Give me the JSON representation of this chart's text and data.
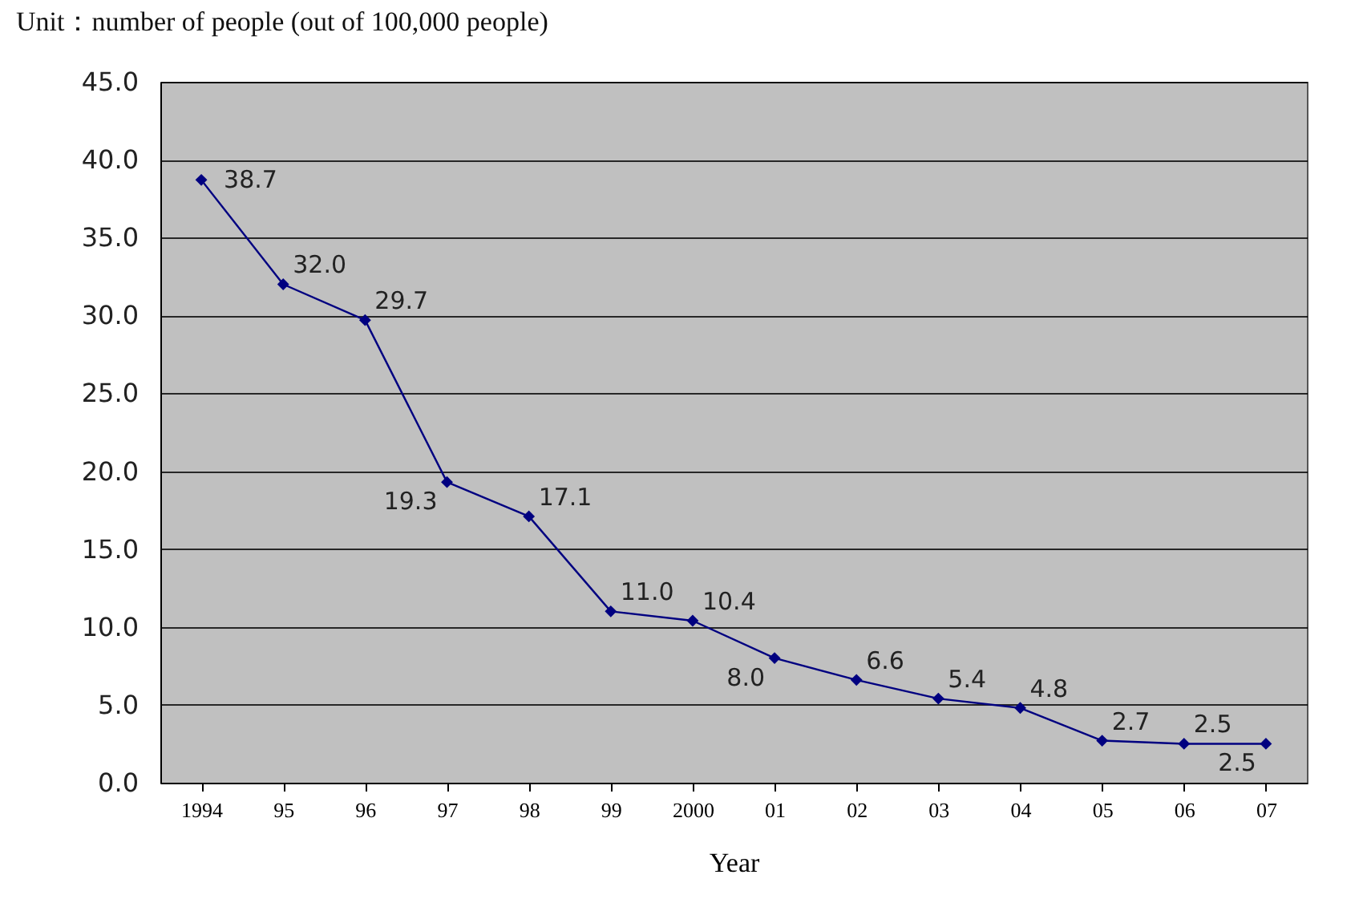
{
  "chart_data": {
    "type": "line",
    "title": "Unit：number of people (out of 100,000 people)",
    "xlabel": "Year",
    "categories": [
      "1994",
      "95",
      "96",
      "97",
      "98",
      "99",
      "2000",
      "01",
      "02",
      "03",
      "04",
      "05",
      "06",
      "07"
    ],
    "series": [
      {
        "color": "#000080",
        "values": [
          38.7,
          32.0,
          29.7,
          19.3,
          17.1,
          11.0,
          10.4,
          8.0,
          6.6,
          5.4,
          4.8,
          2.7,
          2.5,
          2.5
        ],
        "value_labels": [
          "38.7",
          "32.0",
          "29.7",
          "19.3",
          "17.1",
          "11.0",
          "10.4",
          "8.0",
          "6.6",
          "5.4",
          "4.8",
          "2.7",
          "2.5",
          "2.5"
        ]
      }
    ],
    "ylim": [
      0,
      45
    ],
    "yticks": [
      {
        "value": 0,
        "label": "0.0"
      },
      {
        "value": 5,
        "label": "5.0"
      },
      {
        "value": 10,
        "label": "10.0"
      },
      {
        "value": 15,
        "label": "15.0"
      },
      {
        "value": 20,
        "label": "20.0"
      },
      {
        "value": 25,
        "label": "25.0"
      },
      {
        "value": 30,
        "label": "30.0"
      },
      {
        "value": 35,
        "label": "35.0"
      },
      {
        "value": 40,
        "label": "40.0"
      },
      {
        "value": 45,
        "label": "45.0"
      }
    ],
    "grid": "y",
    "marker": "diamond",
    "line_style": "solid"
  }
}
